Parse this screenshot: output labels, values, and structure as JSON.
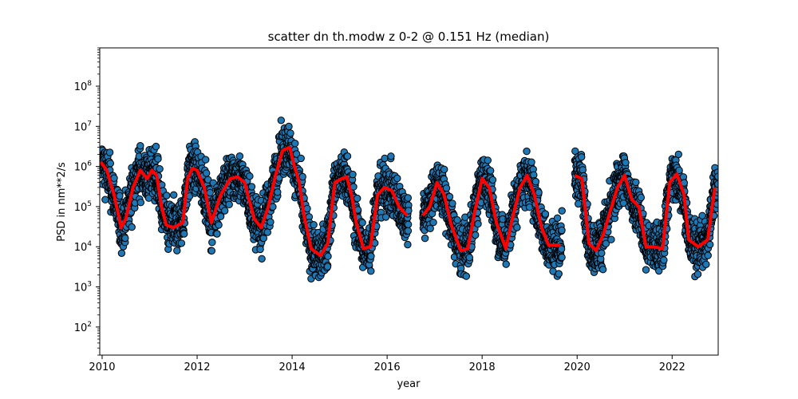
{
  "chart_data": {
    "type": "scatter",
    "title": "scatter dn th.modw z 0-2 @ 0.151 Hz (median)",
    "xlabel": "year",
    "ylabel": "PSD in nm**2/s",
    "xlim": [
      2009.95,
      2022.97
    ],
    "ylim": [
      20,
      900000000
    ],
    "yscale": "log",
    "grid": false,
    "x_ticks": [
      "2010",
      "2012",
      "2014",
      "2016",
      "2018",
      "2020",
      "2022"
    ],
    "y_ticks": [
      {
        "base": "10",
        "exp": "2"
      },
      {
        "base": "10",
        "exp": "3"
      },
      {
        "base": "10",
        "exp": "4"
      },
      {
        "base": "10",
        "exp": "5"
      },
      {
        "base": "10",
        "exp": "6"
      },
      {
        "base": "10",
        "exp": "7"
      },
      {
        "base": "10",
        "exp": "8"
      }
    ],
    "colors": {
      "points": "#1f77b4",
      "point_edge": "#000000",
      "median": "#ff0000"
    },
    "gaps": [
      [
        2016.45,
        2016.75
      ],
      [
        2019.68,
        2019.95
      ],
      [
        2021.55,
        2021.58
      ]
    ],
    "median_series": {
      "x": [
        2009.97,
        2010.1,
        2010.25,
        2010.4,
        2010.5,
        2010.65,
        2010.8,
        2010.95,
        2011.05,
        2011.15,
        2011.25,
        2011.35,
        2011.5,
        2011.7,
        2011.8,
        2011.9,
        2012.0,
        2012.15,
        2012.3,
        2012.5,
        2012.7,
        2012.85,
        2013.0,
        2013.2,
        2013.35,
        2013.5,
        2013.65,
        2013.8,
        2013.95,
        2014.05,
        2014.15,
        2014.25,
        2014.4,
        2014.6,
        2014.75,
        2014.9,
        2015.05,
        2015.15,
        2015.25,
        2015.35,
        2015.5,
        2015.65,
        2015.8,
        2015.95,
        2016.1,
        2016.25,
        2016.42,
        2016.75,
        2016.9,
        2017.05,
        2017.2,
        2017.35,
        2017.55,
        2017.7,
        2017.85,
        2018.0,
        2018.15,
        2018.3,
        2018.5,
        2018.65,
        2018.8,
        2018.95,
        2019.1,
        2019.25,
        2019.4,
        2019.65,
        2019.95,
        2020.1,
        2020.25,
        2020.4,
        2020.55,
        2020.7,
        2020.85,
        2021.0,
        2021.15,
        2021.3,
        2021.45,
        2021.6,
        2021.8,
        2021.95,
        2022.1,
        2022.25,
        2022.35,
        2022.55,
        2022.75,
        2022.9
      ],
      "y": [
        1300000,
        800000,
        200000,
        30000,
        50000,
        300000,
        800000,
        500000,
        800000,
        600000,
        100000,
        35000,
        30000,
        40000,
        500000,
        900000,
        800000,
        300000,
        40000,
        200000,
        500000,
        550000,
        400000,
        50000,
        30000,
        100000,
        600000,
        2500000,
        3000000,
        1000000,
        400000,
        60000,
        9000,
        6000,
        12000,
        400000,
        500000,
        550000,
        200000,
        40000,
        9000,
        10000,
        200000,
        300000,
        250000,
        100000,
        60000,
        60000,
        100000,
        400000,
        200000,
        35000,
        8000,
        9000,
        80000,
        500000,
        300000,
        40000,
        9000,
        60000,
        300000,
        600000,
        200000,
        30000,
        11000,
        11000,
        600000,
        500000,
        12000,
        8000,
        20000,
        80000,
        300000,
        600000,
        150000,
        100000,
        10000,
        10000,
        9000,
        400000,
        650000,
        200000,
        15000,
        10000,
        15000,
        300000
      ]
    }
  }
}
